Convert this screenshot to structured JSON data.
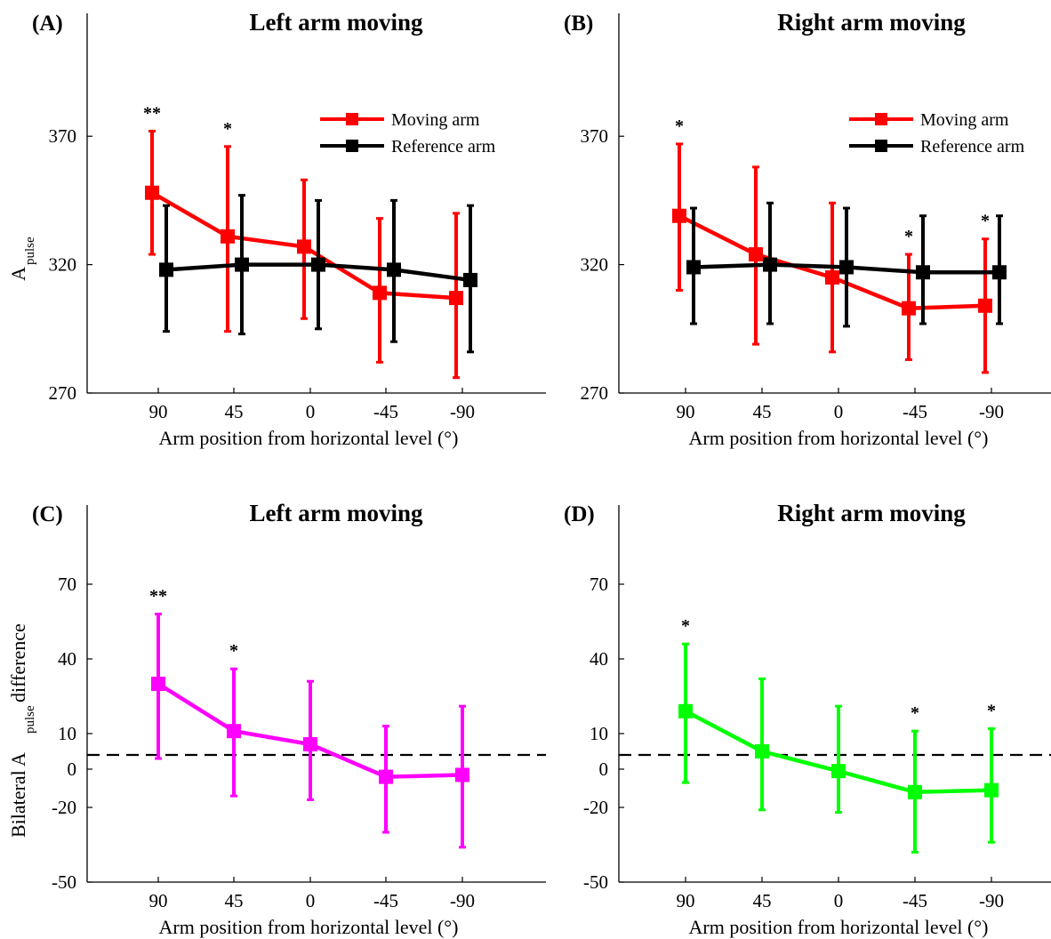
{
  "chart_data": [
    {
      "type": "line",
      "panel_label": "(A)",
      "title": "Left arm moving",
      "xlabel": "Arm position from horizontal level (°)",
      "ylabel": "A",
      "ylabel_sub": "pulse",
      "categories": [
        "90",
        "45",
        "0",
        "-45",
        "-90"
      ],
      "yticks": [
        "270",
        "320",
        "370"
      ],
      "ylim": [
        270,
        380
      ],
      "legend": "top-right",
      "series": [
        {
          "name": "Moving arm",
          "color": "#ff0000",
          "values": [
            348,
            331,
            327,
            309,
            307
          ],
          "err_low": [
            324,
            294,
            299,
            282,
            276
          ],
          "err_high": [
            372,
            366,
            353,
            338,
            340
          ]
        },
        {
          "name": "Reference arm",
          "color": "#000000",
          "values": [
            318,
            320,
            320,
            318,
            314
          ],
          "err_low": [
            294,
            293,
            295,
            290,
            286
          ],
          "err_high": [
            343,
            347,
            345,
            345,
            343
          ]
        }
      ],
      "annotations": [
        {
          "index": 0,
          "text": "**"
        },
        {
          "index": 1,
          "text": "*"
        }
      ]
    },
    {
      "type": "line",
      "panel_label": "(B)",
      "title": "Right arm moving",
      "xlabel": "Arm position from horizontal level (°)",
      "ylabel": "",
      "ylabel_sub": "",
      "categories": [
        "90",
        "45",
        "0",
        "-45",
        "-90"
      ],
      "yticks": [
        "270",
        "320",
        "370"
      ],
      "ylim": [
        270,
        380
      ],
      "legend": "top-right",
      "series": [
        {
          "name": "Moving arm",
          "color": "#ff0000",
          "values": [
            339,
            324,
            315,
            303,
            304
          ],
          "err_low": [
            310,
            289,
            286,
            283,
            278
          ],
          "err_high": [
            367,
            358,
            344,
            324,
            330
          ]
        },
        {
          "name": "Reference arm",
          "color": "#000000",
          "values": [
            319,
            320,
            319,
            317,
            317
          ],
          "err_low": [
            297,
            297,
            296,
            297,
            297
          ],
          "err_high": [
            342,
            344,
            342,
            339,
            339
          ]
        }
      ],
      "annotations": [
        {
          "index": 0,
          "text": "*"
        },
        {
          "index": 3,
          "text": "*"
        },
        {
          "index": 4,
          "text": "*"
        }
      ]
    },
    {
      "type": "line",
      "panel_label": "(C)",
      "title": "Left arm moving",
      "xlabel": "Arm position from horizontal level (°)",
      "ylabel_pre": "Bilateral  A",
      "ylabel_sub": "pulse",
      "ylabel_post": " difference",
      "categories": [
        "90",
        "45",
        "0",
        "-45",
        "-90"
      ],
      "yticks": [
        "-50",
        "-20",
        "0",
        "10",
        "40",
        "70"
      ],
      "ylim": [
        -50,
        70
      ],
      "reference_line": 4,
      "series": [
        {
          "name": "",
          "color": "#ff00ff",
          "values": [
            30,
            11,
            7,
            -4,
            -3
          ],
          "err_low": [
            3,
            -14,
            -16,
            -30,
            -36
          ],
          "err_high": [
            58,
            36,
            31,
            13,
            21
          ]
        }
      ],
      "annotations": [
        {
          "index": 0,
          "text": "**"
        },
        {
          "index": 1,
          "text": "*"
        }
      ]
    },
    {
      "type": "line",
      "panel_label": "(D)",
      "title": "Right arm moving",
      "xlabel": "Arm position from horizontal level (°)",
      "categories": [
        "90",
        "45",
        "0",
        "-45",
        "-90"
      ],
      "yticks": [
        "-50",
        "-20",
        "0",
        "10",
        "40",
        "70"
      ],
      "ylim": [
        -50,
        70
      ],
      "reference_line": 4,
      "series": [
        {
          "name": "",
          "color": "#00ff00",
          "values": [
            19,
            5,
            -1,
            -12,
            -11
          ],
          "err_low": [
            -7,
            -21,
            -22,
            -38,
            -34
          ],
          "err_high": [
            46,
            32,
            21,
            11,
            12
          ]
        }
      ],
      "annotations": [
        {
          "index": 0,
          "text": "*"
        },
        {
          "index": 3,
          "text": "*"
        },
        {
          "index": 4,
          "text": "*"
        }
      ]
    }
  ]
}
